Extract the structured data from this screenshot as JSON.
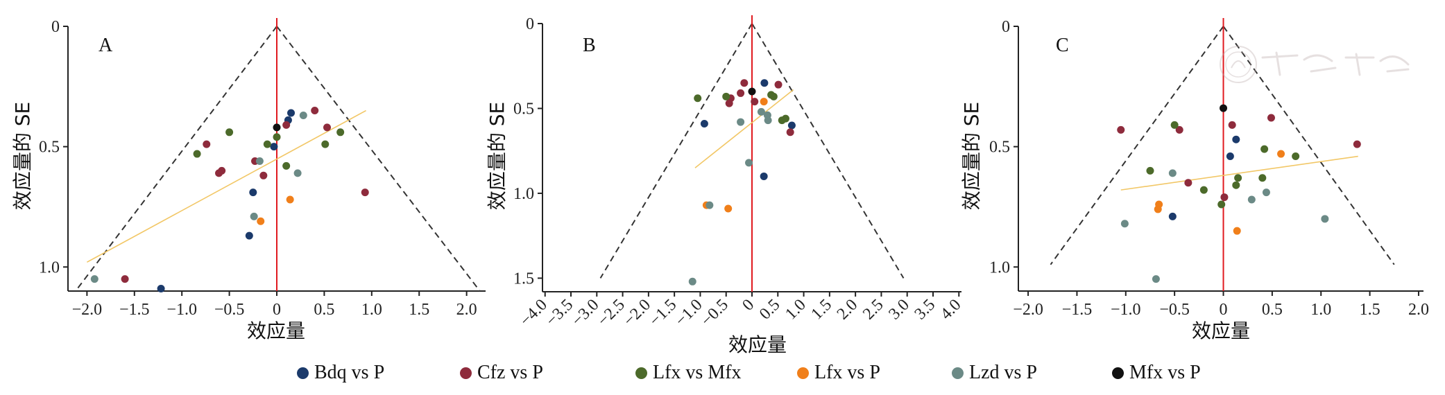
{
  "colors": {
    "Bdq vs P": "#1b3a6b",
    "Cfz vs P": "#8e2b3c",
    "Lfx vs Mfx": "#4c6a2a",
    "Lfx vs P": "#f07f1a",
    "Lzd vs P": "#6b8a86",
    "Mfx vs P": "#111111",
    "center_line": "#e0191f",
    "regression": "#f2c766",
    "funnel": "#333333"
  },
  "legend": {
    "items": [
      {
        "label": "Bdq vs P",
        "color": "#1b3a6b"
      },
      {
        "label": "Cfz vs P",
        "color": "#8e2b3c"
      },
      {
        "label": "Lfx vs Mfx",
        "color": "#4c6a2a"
      },
      {
        "label": "Lfx vs P",
        "color": "#f07f1a"
      },
      {
        "label": "Lzd vs P",
        "color": "#6b8a86"
      },
      {
        "label": "Mfx vs P",
        "color": "#111111"
      }
    ]
  },
  "watermark_text": "中華醫學會",
  "chart_data": [
    {
      "type": "scatter",
      "panel": "A",
      "xlabel": "效应量",
      "ylabel": "效应量的 SE",
      "xlim": [
        -2.2,
        2.2
      ],
      "ylim_reversed": [
        1.1,
        0
      ],
      "x_ticks": [
        -2.0,
        -1.5,
        -1.0,
        -0.5,
        0,
        0.5,
        1.0,
        1.5,
        2.0
      ],
      "x_tick_labels": [
        "−2.0",
        "−1.5",
        "−1.0",
        "−0.5",
        "0",
        "0.5",
        "1.0",
        "1.5",
        "2.0"
      ],
      "y_ticks": [
        0,
        0.5,
        1.0
      ],
      "y_tick_labels": [
        "0",
        "0.5",
        "1.0"
      ],
      "funnel": {
        "apex": [
          0,
          0
        ],
        "left": [
          -2.12,
          1.1
        ],
        "right": [
          2.14,
          1.1
        ]
      },
      "regression": {
        "x": [
          -2.0,
          0.94
        ],
        "y": [
          0.98,
          0.35
        ]
      },
      "points": [
        {
          "group": "Bdq vs P",
          "x": 0.15,
          "y": 0.36
        },
        {
          "group": "Bdq vs P",
          "x": 0.12,
          "y": 0.39
        },
        {
          "group": "Bdq vs P",
          "x": -0.03,
          "y": 0.5
        },
        {
          "group": "Bdq vs P",
          "x": -0.25,
          "y": 0.69
        },
        {
          "group": "Bdq vs P",
          "x": -0.29,
          "y": 0.87
        },
        {
          "group": "Bdq vs P",
          "x": -1.22,
          "y": 1.09
        },
        {
          "group": "Cfz vs P",
          "x": 0.4,
          "y": 0.35
        },
        {
          "group": "Cfz vs P",
          "x": 0.53,
          "y": 0.42
        },
        {
          "group": "Cfz vs P",
          "x": 0.1,
          "y": 0.41
        },
        {
          "group": "Cfz vs P",
          "x": -0.74,
          "y": 0.49
        },
        {
          "group": "Cfz vs P",
          "x": -0.58,
          "y": 0.6
        },
        {
          "group": "Cfz vs P",
          "x": -0.61,
          "y": 0.61
        },
        {
          "group": "Cfz vs P",
          "x": -0.23,
          "y": 0.56
        },
        {
          "group": "Cfz vs P",
          "x": -0.14,
          "y": 0.62
        },
        {
          "group": "Cfz vs P",
          "x": 0.93,
          "y": 0.69
        },
        {
          "group": "Cfz vs P",
          "x": -1.6,
          "y": 1.05
        },
        {
          "group": "Lfx vs Mfx",
          "x": 0.67,
          "y": 0.44
        },
        {
          "group": "Lfx vs Mfx",
          "x": 0.51,
          "y": 0.49
        },
        {
          "group": "Lfx vs Mfx",
          "x": 0.0,
          "y": 0.46
        },
        {
          "group": "Lfx vs Mfx",
          "x": -0.1,
          "y": 0.49
        },
        {
          "group": "Lfx vs Mfx",
          "x": -0.5,
          "y": 0.44
        },
        {
          "group": "Lfx vs Mfx",
          "x": -0.84,
          "y": 0.53
        },
        {
          "group": "Lfx vs Mfx",
          "x": 0.1,
          "y": 0.58
        },
        {
          "group": "Lfx vs P",
          "x": 0.14,
          "y": 0.72
        },
        {
          "group": "Lfx vs P",
          "x": -0.17,
          "y": 0.81
        },
        {
          "group": "Lzd vs P",
          "x": 0.28,
          "y": 0.37
        },
        {
          "group": "Lzd vs P",
          "x": -0.18,
          "y": 0.56
        },
        {
          "group": "Lzd vs P",
          "x": 0.22,
          "y": 0.61
        },
        {
          "group": "Lzd vs P",
          "x": -0.24,
          "y": 0.79
        },
        {
          "group": "Lzd vs P",
          "x": -1.92,
          "y": 1.05
        },
        {
          "group": "Mfx vs P",
          "x": 0.0,
          "y": 0.42
        }
      ]
    },
    {
      "type": "scatter",
      "panel": "B",
      "xlabel": "效应量",
      "ylabel": "效应量的 SE",
      "xlim": [
        -4.05,
        4.05
      ],
      "ylim_reversed": [
        1.58,
        0
      ],
      "x_ticks": [
        -4.0,
        -3.5,
        -3.0,
        -2.5,
        -2.0,
        -1.5,
        -1.0,
        -0.5,
        0,
        0.5,
        1.0,
        1.5,
        2.0,
        2.5,
        3.0,
        3.5,
        4.0
      ],
      "x_tick_labels": [
        "−4.0",
        "−3.5",
        "−3.0",
        "−2.5",
        "−2.0",
        "−1.5",
        "−1.0",
        "−0.5",
        "0",
        "0.5",
        "1.0",
        "1.5",
        "2.0",
        "2.5",
        "3.0",
        "3.5",
        "4.0"
      ],
      "y_ticks": [
        0,
        0.5,
        1.0,
        1.5
      ],
      "y_tick_labels": [
        "0",
        "0.5",
        "1.0",
        "1.5"
      ],
      "funnel": {
        "apex": [
          0,
          0
        ],
        "left": [
          -2.93,
          1.5
        ],
        "right": [
          2.93,
          1.5
        ]
      },
      "regression": {
        "x": [
          -1.1,
          0.8
        ],
        "y": [
          0.85,
          0.39
        ]
      },
      "points": [
        {
          "group": "Bdq vs P",
          "x": 0.24,
          "y": 0.35
        },
        {
          "group": "Bdq vs P",
          "x": 0.77,
          "y": 0.6
        },
        {
          "group": "Bdq vs P",
          "x": -0.92,
          "y": 0.59
        },
        {
          "group": "Bdq vs P",
          "x": 0.23,
          "y": 0.9
        },
        {
          "group": "Cfz vs P",
          "x": -0.15,
          "y": 0.35
        },
        {
          "group": "Cfz vs P",
          "x": 0.51,
          "y": 0.36
        },
        {
          "group": "Cfz vs P",
          "x": -0.22,
          "y": 0.41
        },
        {
          "group": "Cfz vs P",
          "x": -0.41,
          "y": 0.44
        },
        {
          "group": "Cfz vs P",
          "x": -0.44,
          "y": 0.47
        },
        {
          "group": "Cfz vs P",
          "x": 0.05,
          "y": 0.46
        },
        {
          "group": "Cfz vs P",
          "x": 0.74,
          "y": 0.64
        },
        {
          "group": "Lfx vs Mfx",
          "x": -1.05,
          "y": 0.44
        },
        {
          "group": "Lfx vs Mfx",
          "x": -0.5,
          "y": 0.43
        },
        {
          "group": "Lfx vs Mfx",
          "x": 0.37,
          "y": 0.42
        },
        {
          "group": "Lfx vs Mfx",
          "x": 0.42,
          "y": 0.43
        },
        {
          "group": "Lfx vs Mfx",
          "x": 0.58,
          "y": 0.57
        },
        {
          "group": "Lfx vs Mfx",
          "x": 0.65,
          "y": 0.56
        },
        {
          "group": "Lfx vs P",
          "x": 0.23,
          "y": 0.46
        },
        {
          "group": "Lfx vs P",
          "x": -0.88,
          "y": 1.07
        },
        {
          "group": "Lfx vs P",
          "x": -0.46,
          "y": 1.09
        },
        {
          "group": "Lzd vs P",
          "x": 0.18,
          "y": 0.52
        },
        {
          "group": "Lzd vs P",
          "x": 0.3,
          "y": 0.54
        },
        {
          "group": "Lzd vs P",
          "x": -0.22,
          "y": 0.58
        },
        {
          "group": "Lzd vs P",
          "x": 0.31,
          "y": 0.57
        },
        {
          "group": "Lzd vs P",
          "x": -0.06,
          "y": 0.82
        },
        {
          "group": "Lzd vs P",
          "x": -0.82,
          "y": 1.07
        },
        {
          "group": "Lzd vs P",
          "x": -1.15,
          "y": 1.52
        },
        {
          "group": "Mfx vs P",
          "x": 0.0,
          "y": 0.4
        }
      ]
    },
    {
      "type": "scatter",
      "panel": "C",
      "xlabel": "效应量",
      "ylabel": "效应量的 SE",
      "xlim": [
        -2.1,
        2.05
      ],
      "ylim_reversed": [
        1.1,
        0
      ],
      "x_ticks": [
        -2.0,
        -1.5,
        -1.0,
        -0.5,
        0,
        0.5,
        1.0,
        1.5,
        2.0
      ],
      "x_tick_labels": [
        "−2.0",
        "−1.5",
        "−1.0",
        "−0.5",
        "0",
        "0.5",
        "1.0",
        "1.5",
        "2.0"
      ],
      "y_ticks": [
        0,
        0.5,
        1.0
      ],
      "y_tick_labels": [
        "0",
        "0.5",
        "1.0"
      ],
      "funnel": {
        "apex": [
          0,
          0
        ],
        "left": [
          -1.77,
          0.99
        ],
        "right": [
          1.75,
          0.99
        ]
      },
      "regression": {
        "x": [
          -1.05,
          1.38
        ],
        "y": [
          0.68,
          0.54
        ]
      },
      "points": [
        {
          "group": "Bdq vs P",
          "x": 0.07,
          "y": 0.54
        },
        {
          "group": "Bdq vs P",
          "x": 0.13,
          "y": 0.47
        },
        {
          "group": "Bdq vs P",
          "x": -0.52,
          "y": 0.79
        },
        {
          "group": "Cfz vs P",
          "x": -1.05,
          "y": 0.43
        },
        {
          "group": "Cfz vs P",
          "x": -0.45,
          "y": 0.43
        },
        {
          "group": "Cfz vs P",
          "x": 0.09,
          "y": 0.41
        },
        {
          "group": "Cfz vs P",
          "x": 0.49,
          "y": 0.38
        },
        {
          "group": "Cfz vs P",
          "x": 1.37,
          "y": 0.49
        },
        {
          "group": "Cfz vs P",
          "x": -0.36,
          "y": 0.65
        },
        {
          "group": "Cfz vs P",
          "x": 0.01,
          "y": 0.71
        },
        {
          "group": "Lfx vs Mfx",
          "x": -0.5,
          "y": 0.41
        },
        {
          "group": "Lfx vs Mfx",
          "x": 0.42,
          "y": 0.51
        },
        {
          "group": "Lfx vs Mfx",
          "x": 0.74,
          "y": 0.54
        },
        {
          "group": "Lfx vs Mfx",
          "x": -0.75,
          "y": 0.6
        },
        {
          "group": "Lfx vs Mfx",
          "x": 0.15,
          "y": 0.63
        },
        {
          "group": "Lfx vs Mfx",
          "x": 0.4,
          "y": 0.63
        },
        {
          "group": "Lfx vs Mfx",
          "x": 0.13,
          "y": 0.66
        },
        {
          "group": "Lfx vs Mfx",
          "x": -0.2,
          "y": 0.68
        },
        {
          "group": "Lfx vs Mfx",
          "x": -0.02,
          "y": 0.74
        },
        {
          "group": "Lfx vs P",
          "x": 0.59,
          "y": 0.53
        },
        {
          "group": "Lfx vs P",
          "x": -0.66,
          "y": 0.74
        },
        {
          "group": "Lfx vs P",
          "x": -0.67,
          "y": 0.76
        },
        {
          "group": "Lfx vs P",
          "x": 0.14,
          "y": 0.85
        },
        {
          "group": "Lzd vs P",
          "x": -0.52,
          "y": 0.61
        },
        {
          "group": "Lzd vs P",
          "x": 0.44,
          "y": 0.69
        },
        {
          "group": "Lzd vs P",
          "x": 0.29,
          "y": 0.72
        },
        {
          "group": "Lzd vs P",
          "x": -1.01,
          "y": 0.82
        },
        {
          "group": "Lzd vs P",
          "x": 1.04,
          "y": 0.8
        },
        {
          "group": "Lzd vs P",
          "x": -0.69,
          "y": 1.05
        },
        {
          "group": "Mfx vs P",
          "x": 0.0,
          "y": 0.34
        }
      ]
    }
  ]
}
